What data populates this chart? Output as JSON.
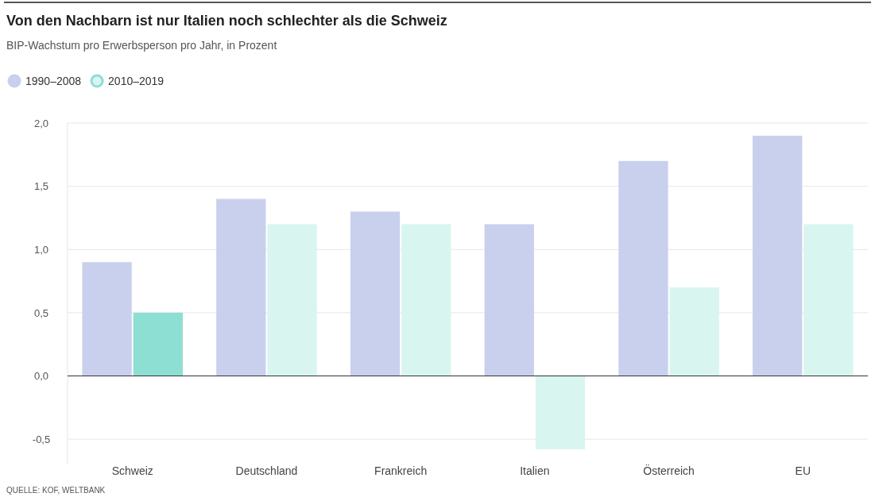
{
  "chart_data": {
    "type": "bar",
    "title": "Von den Nachbarn ist nur Italien noch schlechter als die Schweiz",
    "subtitle": "BIP-Wachstum pro Erwerbsperson pro Jahr, in Prozent",
    "categories": [
      "Schweiz",
      "Deutschland",
      "Frankreich",
      "Italien",
      "Österreich",
      "EU"
    ],
    "series": [
      {
        "name": "1990–2008",
        "color": "#c9d0ee",
        "values": [
          0.9,
          1.4,
          1.3,
          1.2,
          1.7,
          1.9
        ]
      },
      {
        "name": "2010–2019",
        "color": "#d9f5f0",
        "colors": [
          "#8ddfd3",
          "#d9f5f0",
          "#d9f5f0",
          "#d9f5f0",
          "#d9f5f0",
          "#d9f5f0"
        ],
        "values": [
          0.5,
          1.2,
          1.2,
          -0.58,
          0.7,
          1.2
        ]
      }
    ],
    "ylim": [
      -0.7,
      2.0
    ],
    "yticks": [
      {
        "value": -0.5,
        "label": "-0,5"
      },
      {
        "value": 0,
        "label": "0,0"
      },
      {
        "value": 0.5,
        "label": "0,5"
      },
      {
        "value": 1,
        "label": "1,0"
      },
      {
        "value": 1.5,
        "label": "1,5"
      },
      {
        "value": 2,
        "label": "2,0"
      }
    ],
    "grid": "y",
    "legend": "top left",
    "annotations": [
      "QUELLE: KOF, WELTBANK"
    ]
  }
}
